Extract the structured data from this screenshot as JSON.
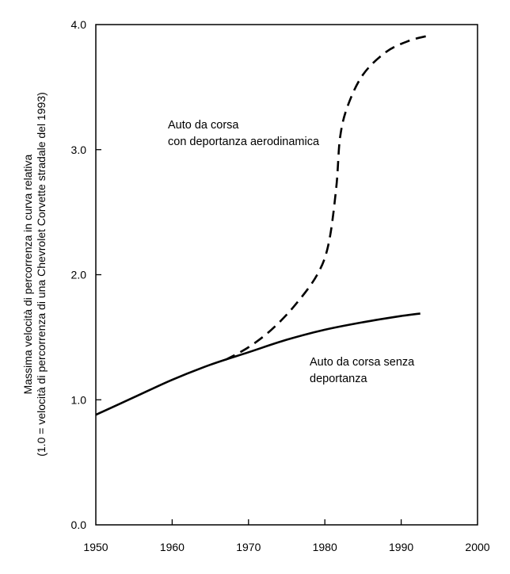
{
  "chart_data": {
    "type": "line",
    "title": "",
    "xlabel": "",
    "ylabel": "Massima velocità di percorrenza in curva relativa",
    "ylabel2": "(1.0 = velocità di percorrenza di una Chevrolet Corvette stradale del 1993)",
    "xlim": [
      1950,
      2000
    ],
    "ylim": [
      0.0,
      4.0
    ],
    "xticks": [
      "1950",
      "1960",
      "1970",
      "1980",
      "1990",
      "2000"
    ],
    "yticks": [
      "0.0",
      "1.0",
      "2.0",
      "3.0",
      "4.0"
    ],
    "grid": false,
    "annotations": [
      {
        "lines": [
          "Auto da corsa",
          "con deportanza aerodinamica"
        ],
        "series": 1
      },
      {
        "lines": [
          "Auto da corsa senza",
          "deportanza"
        ],
        "series": 0
      }
    ],
    "series": [
      {
        "style": "solid",
        "x": [
          1950,
          1955,
          1960,
          1965,
          1970,
          1975,
          1980,
          1985,
          1990,
          1992.5
        ],
        "y": [
          0.88,
          1.02,
          1.16,
          1.28,
          1.38,
          1.48,
          1.56,
          1.62,
          1.67,
          1.69
        ]
      },
      {
        "style": "dashed",
        "x": [
          1967,
          1970,
          1973,
          1976,
          1979,
          1980.5,
          1981.5,
          1982,
          1983,
          1985,
          1988,
          1991,
          1993.5
        ],
        "y": [
          1.32,
          1.42,
          1.56,
          1.75,
          2.0,
          2.25,
          2.7,
          3.1,
          3.35,
          3.6,
          3.78,
          3.87,
          3.91
        ]
      }
    ]
  }
}
